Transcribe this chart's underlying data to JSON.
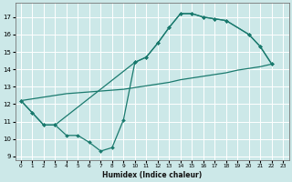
{
  "xlabel": "Humidex (Indice chaleur)",
  "xlim": [
    -0.5,
    23.5
  ],
  "ylim": [
    8.8,
    17.8
  ],
  "yticks": [
    9,
    10,
    11,
    12,
    13,
    14,
    15,
    16,
    17
  ],
  "xticks": [
    0,
    1,
    2,
    3,
    4,
    5,
    6,
    7,
    8,
    9,
    10,
    11,
    12,
    13,
    14,
    15,
    16,
    17,
    18,
    19,
    20,
    21,
    22,
    23
  ],
  "bg_color": "#cce8e8",
  "grid_color": "#ffffff",
  "line_color": "#1a7a6e",
  "line1_x": [
    0,
    1,
    2,
    3,
    10,
    11,
    12,
    13,
    14,
    15,
    16,
    17,
    18,
    20,
    21,
    22
  ],
  "line1_y": [
    12.2,
    11.5,
    10.8,
    10.8,
    14.4,
    14.7,
    15.5,
    16.4,
    17.2,
    17.2,
    17.0,
    16.9,
    16.8,
    16.0,
    15.3,
    14.3
  ],
  "line2_x": [
    0,
    1,
    2,
    3,
    4,
    5,
    6,
    7,
    8,
    9,
    10,
    11,
    12,
    13,
    14,
    15,
    16,
    17,
    18,
    20,
    21,
    22
  ],
  "line2_y": [
    12.2,
    11.5,
    10.8,
    10.8,
    10.2,
    10.2,
    9.8,
    9.3,
    9.5,
    11.1,
    14.4,
    14.7,
    15.5,
    16.4,
    17.2,
    17.2,
    17.0,
    16.9,
    16.8,
    16.0,
    15.3,
    14.3
  ],
  "line3_x": [
    0,
    1,
    2,
    3,
    4,
    5,
    6,
    7,
    8,
    9,
    10,
    11,
    12,
    13,
    14,
    15,
    16,
    17,
    18,
    19,
    20,
    21,
    22
  ],
  "line3_y": [
    12.2,
    12.3,
    12.4,
    12.5,
    12.6,
    12.65,
    12.7,
    12.75,
    12.8,
    12.85,
    12.95,
    13.05,
    13.15,
    13.25,
    13.4,
    13.5,
    13.6,
    13.7,
    13.8,
    13.95,
    14.05,
    14.15,
    14.3
  ]
}
